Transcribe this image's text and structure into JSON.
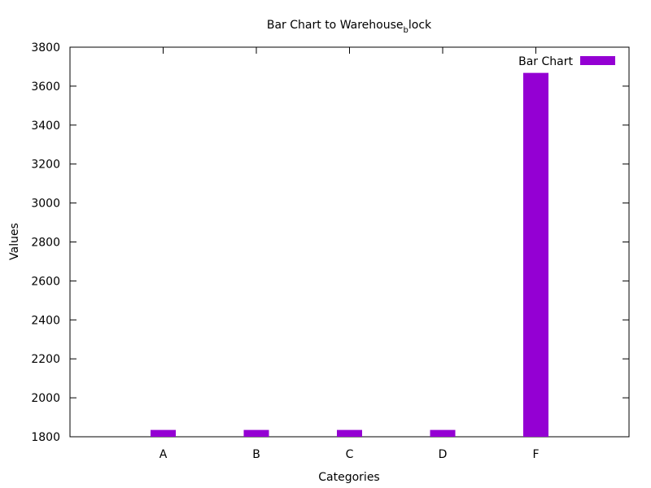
{
  "chart_data": {
    "type": "bar",
    "title_main": "Bar Chart to Warehouse",
    "title_sub": "b",
    "title_tail": "lock",
    "xlabel": "Categories",
    "ylabel": "Values",
    "categories": [
      "A",
      "B",
      "C",
      "D",
      "F"
    ],
    "series": [
      {
        "name": "Bar Chart",
        "values": [
          1835,
          1835,
          1835,
          1835,
          3668
        ],
        "color": "#9400d3"
      }
    ],
    "ylim": [
      1800,
      3800
    ],
    "yticks": [
      1800,
      2000,
      2200,
      2400,
      2600,
      2800,
      3000,
      3200,
      3400,
      3600,
      3800
    ],
    "grid": false,
    "legend_position": "top-right"
  }
}
